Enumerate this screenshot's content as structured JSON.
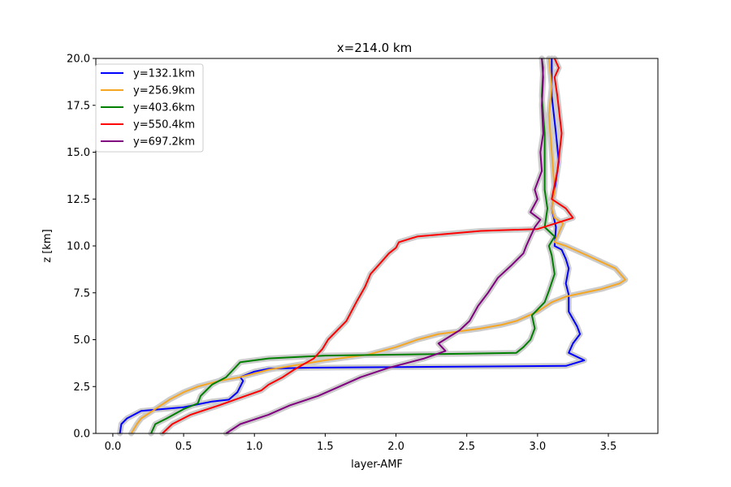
{
  "chart_data": {
    "type": "line",
    "title": "x=214.0 km",
    "xlabel": "layer-AMF",
    "ylabel": "z [km]",
    "xlim": [
      -0.12,
      3.85
    ],
    "ylim": [
      0,
      20
    ],
    "xticks": [
      0.0,
      0.5,
      1.0,
      1.5,
      2.0,
      2.5,
      3.0,
      3.5
    ],
    "xtick_labels": [
      "0.0",
      "0.5",
      "1.0",
      "1.5",
      "2.0",
      "2.5",
      "3.0",
      "3.5"
    ],
    "yticks": [
      0.0,
      2.5,
      5.0,
      7.5,
      10.0,
      12.5,
      15.0,
      17.5,
      20.0
    ],
    "ytick_labels": [
      "0.0",
      "2.5",
      "5.0",
      "7.5",
      "10.0",
      "12.5",
      "15.0",
      "17.5",
      "20.0"
    ],
    "grid": false,
    "legend_position": "upper-left",
    "uncertainty_color": "#cccccc",
    "series": [
      {
        "name": "y=132.1km",
        "color": "#0000ff",
        "x": [
          0.05,
          0.06,
          0.1,
          0.2,
          0.5,
          0.7,
          0.82,
          0.88,
          0.92,
          0.9,
          1.0,
          1.1,
          1.35,
          3.2,
          3.33,
          3.22,
          3.25,
          3.3,
          3.28,
          3.22,
          3.22,
          3.2,
          3.22,
          3.2,
          3.17,
          3.12,
          3.13,
          3.1,
          3.12,
          3.15,
          3.13,
          3.1,
          3.1
        ],
        "y": [
          0,
          0.5,
          0.8,
          1.2,
          1.4,
          1.7,
          1.8,
          2.2,
          2.8,
          3.0,
          3.3,
          3.45,
          3.5,
          3.6,
          3.9,
          4.3,
          4.8,
          5.3,
          5.7,
          6.5,
          7.4,
          8.0,
          8.8,
          9.3,
          9.8,
          10.0,
          11.0,
          12.0,
          13.0,
          14.5,
          16.0,
          18.0,
          20.0
        ]
      },
      {
        "name": "y=256.9km",
        "color": "#f5a623",
        "x": [
          0.13,
          0.17,
          0.2,
          0.3,
          0.4,
          0.5,
          0.6,
          0.75,
          0.9,
          1.1,
          1.5,
          1.8,
          2.0,
          2.15,
          2.3,
          2.6,
          2.75,
          2.85,
          3.0,
          3.1,
          3.2,
          3.45,
          3.58,
          3.62,
          3.55,
          3.35,
          3.2,
          3.12,
          3.18,
          3.12,
          3.1,
          3.12,
          3.1,
          3.08,
          3.1,
          3.08
        ],
        "y": [
          0,
          0.5,
          0.8,
          1.3,
          1.8,
          2.2,
          2.5,
          2.8,
          3.0,
          3.4,
          3.9,
          4.2,
          4.6,
          5.0,
          5.3,
          5.6,
          5.8,
          6.0,
          6.5,
          7.0,
          7.3,
          7.7,
          8.0,
          8.2,
          8.8,
          9.5,
          10.0,
          10.2,
          11.2,
          11.5,
          12.0,
          13.0,
          15.0,
          17.0,
          18.5,
          20.0
        ]
      },
      {
        "name": "y=403.6km",
        "color": "#008000",
        "x": [
          0.27,
          0.3,
          0.38,
          0.5,
          0.6,
          0.62,
          0.7,
          0.8,
          0.85,
          0.9,
          1.1,
          1.5,
          2.5,
          2.85,
          2.9,
          2.95,
          2.98,
          2.96,
          3.05,
          3.08,
          3.12,
          3.1,
          3.08,
          3.12,
          3.05,
          3.07,
          3.05,
          3.05,
          3.05,
          3.03,
          3.04,
          3.03
        ],
        "y": [
          0,
          0.5,
          0.8,
          1.3,
          1.6,
          2.0,
          2.6,
          3.0,
          3.4,
          3.8,
          4.0,
          4.15,
          4.25,
          4.3,
          4.6,
          5.0,
          5.6,
          6.3,
          7.0,
          7.6,
          8.5,
          9.5,
          10.0,
          10.5,
          11.0,
          12.0,
          13.0,
          14.5,
          16.0,
          18.0,
          19.5,
          20.0
        ]
      },
      {
        "name": "y=550.4km",
        "color": "#ff0000",
        "x": [
          0.35,
          0.42,
          0.55,
          0.75,
          0.9,
          1.05,
          1.1,
          1.2,
          1.28,
          1.35,
          1.42,
          1.48,
          1.52,
          1.65,
          1.72,
          1.78,
          1.82,
          1.88,
          1.95,
          2.0,
          2.02,
          2.15,
          2.6,
          3.0,
          3.25,
          3.2,
          3.1,
          3.14,
          3.17,
          3.14,
          3.12,
          3.15,
          3.12
        ],
        "y": [
          0,
          0.5,
          1.0,
          1.5,
          1.9,
          2.3,
          2.6,
          3.0,
          3.4,
          3.7,
          4.0,
          4.5,
          5.0,
          6.0,
          7.0,
          7.8,
          8.5,
          9.0,
          9.6,
          9.9,
          10.2,
          10.5,
          10.8,
          10.9,
          11.5,
          12.0,
          12.5,
          14.0,
          16.0,
          18.0,
          19.0,
          19.5,
          20.0
        ]
      },
      {
        "name": "y=697.2km",
        "color": "#800080",
        "x": [
          0.8,
          0.9,
          1.1,
          1.25,
          1.45,
          1.6,
          1.75,
          1.95,
          2.2,
          2.35,
          2.3,
          2.45,
          2.52,
          2.58,
          2.65,
          2.72,
          2.82,
          2.9,
          2.92,
          2.95,
          2.98,
          3.02,
          2.95,
          3.0,
          2.98,
          3.03,
          3.02,
          3.04,
          3.03,
          3.04,
          3.03
        ],
        "y": [
          0,
          0.5,
          1.0,
          1.5,
          2.0,
          2.5,
          3.0,
          3.5,
          4.0,
          4.4,
          4.8,
          5.5,
          6.0,
          6.8,
          7.5,
          8.3,
          9.0,
          9.6,
          10.0,
          10.5,
          11.0,
          11.4,
          11.8,
          12.5,
          13.0,
          14.0,
          15.0,
          16.0,
          17.5,
          19.0,
          20.0
        ]
      }
    ]
  }
}
